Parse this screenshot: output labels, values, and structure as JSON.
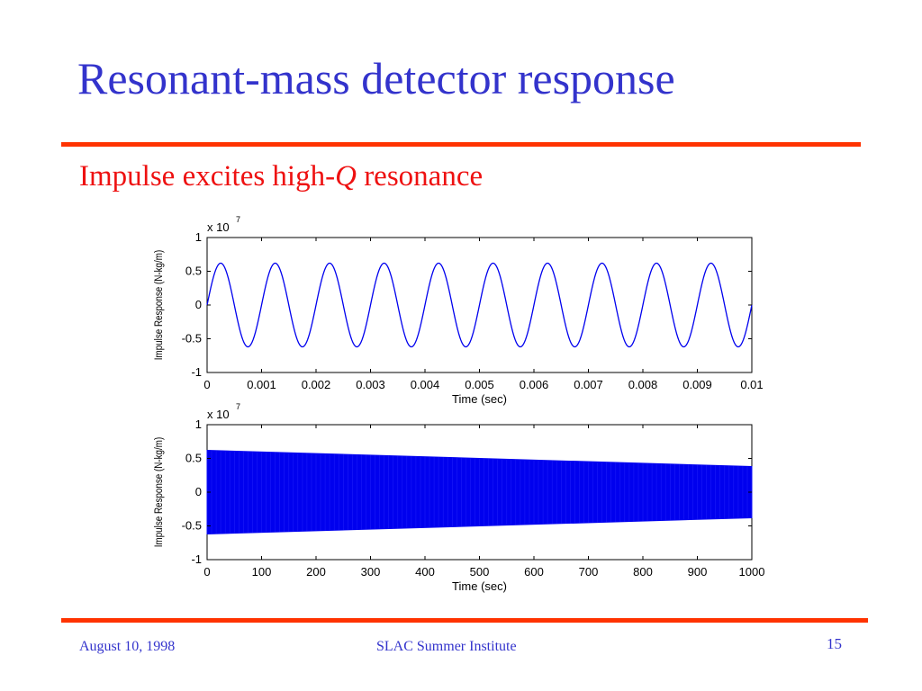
{
  "slide": {
    "title": "Resonant-mass detector response",
    "subtitle_before": "Impulse excites high-",
    "subtitle_italic": "Q",
    "subtitle_after": " resonance"
  },
  "footer": {
    "date": "August 10, 1998",
    "event": "SLAC Summer Institute",
    "page": "15"
  },
  "colors": {
    "title": "#3333cc",
    "subtitle": "#ee1111",
    "rule": "#ff3300",
    "trace": "#0000ee"
  },
  "chart_data": [
    {
      "type": "line",
      "xlabel": "Time (sec)",
      "ylabel": "Impulse Response (N-kg/m)",
      "y_multiplier": "x 10",
      "y_multiplier_exp": "7",
      "xlim": [
        0,
        0.01
      ],
      "ylim": [
        -1,
        1
      ],
      "xticks": [
        "0",
        "0.001",
        "0.002",
        "0.003",
        "0.004",
        "0.005",
        "0.006",
        "0.007",
        "0.008",
        "0.009",
        "0.01"
      ],
      "yticks": [
        "1",
        "0.5",
        "0",
        "-0.5",
        "-1"
      ],
      "grid": false,
      "signal": {
        "shape": "sine",
        "amplitude": 0.62,
        "frequency_hz": 1000,
        "phase_start": 0
      }
    },
    {
      "type": "area",
      "xlabel": "Time (sec)",
      "ylabel": "Impulse Response (N-kg/m)",
      "y_multiplier": "x 10",
      "y_multiplier_exp": "7",
      "xlim": [
        0,
        1000
      ],
      "ylim": [
        -1,
        1
      ],
      "xticks": [
        "0",
        "100",
        "200",
        "300",
        "400",
        "500",
        "600",
        "700",
        "800",
        "900",
        "1000"
      ],
      "yticks": [
        "1",
        "0.5",
        "0",
        "-0.5",
        "-1"
      ],
      "grid": false,
      "envelope": {
        "x": [
          0,
          1000
        ],
        "upper": [
          0.62,
          0.38
        ],
        "lower": [
          -0.62,
          -0.38
        ]
      }
    }
  ]
}
